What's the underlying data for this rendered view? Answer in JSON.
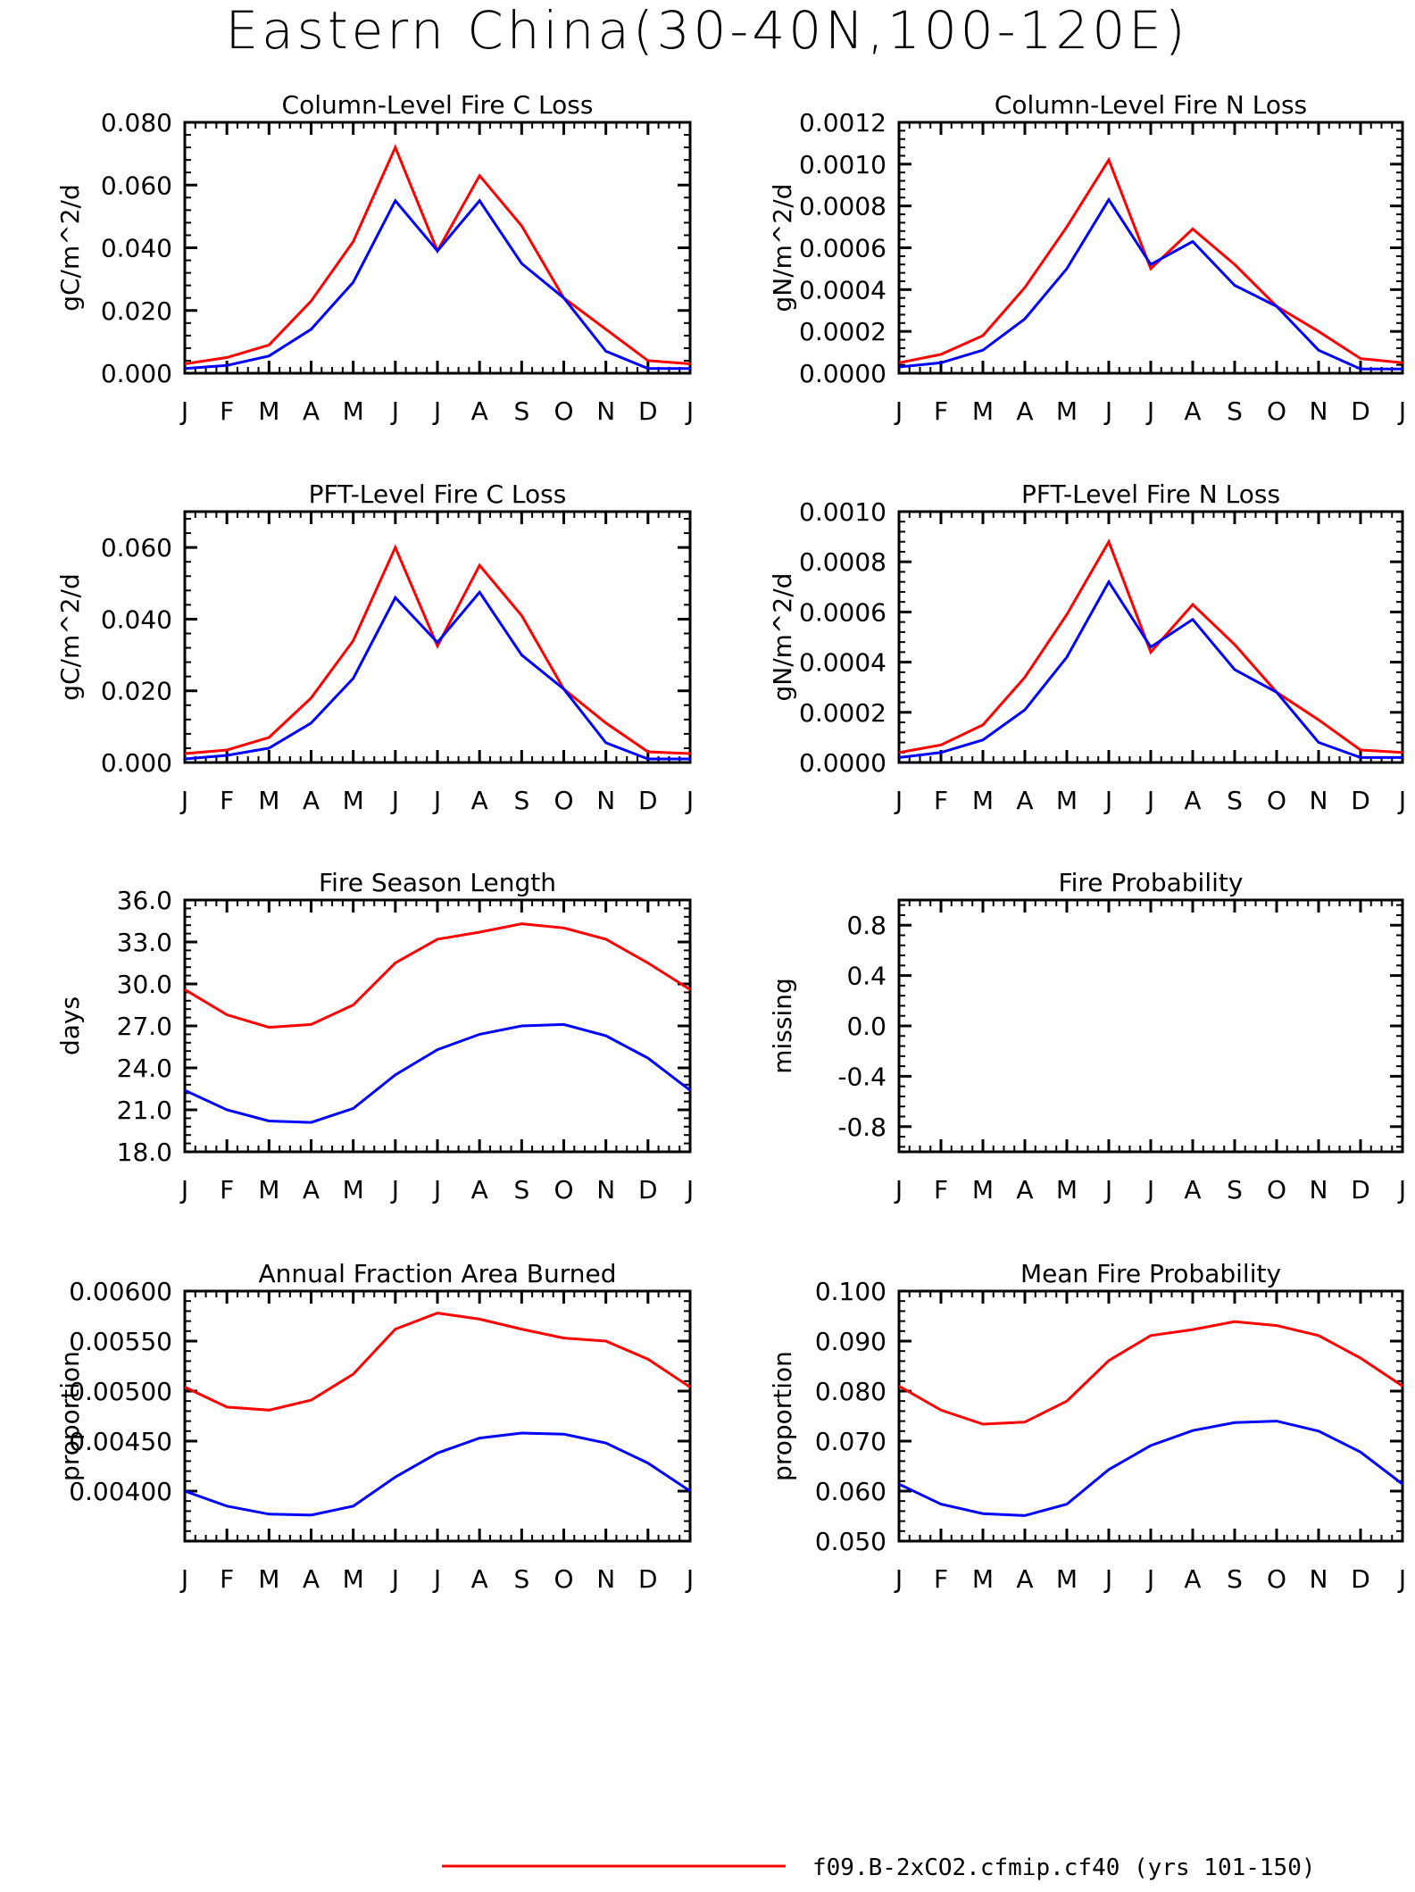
{
  "page": {
    "title": "Eastern China(30-40N,100-120E)",
    "legend": [
      {
        "label": "f09.B-2xCO2.cfmip.cf40 (yrs 101-150)",
        "color": "#ff0000"
      }
    ]
  },
  "colors": {
    "red_series": "#ff0000",
    "blue_series": "#0000ff"
  },
  "chart_data": [
    {
      "type": "line",
      "title": "Column-Level Fire C Loss",
      "ylabel": "gC/m^2/d",
      "categories": [
        "J",
        "F",
        "M",
        "A",
        "M",
        "J",
        "J",
        "A",
        "S",
        "O",
        "N",
        "D",
        "J"
      ],
      "ylim": [
        0,
        0.08
      ],
      "yticks": [
        "0.000",
        "0.020",
        "0.040",
        "0.060",
        "0.080"
      ],
      "series": [
        {
          "color": "#ff0000",
          "values": [
            0.003,
            0.005,
            0.009,
            0.023,
            0.042,
            0.072,
            0.039,
            0.063,
            0.047,
            0.024,
            0.014,
            0.004,
            0.003
          ]
        },
        {
          "color": "#0000ff",
          "values": [
            0.0015,
            0.0025,
            0.0055,
            0.014,
            0.029,
            0.055,
            0.039,
            0.055,
            0.035,
            0.024,
            0.007,
            0.0015,
            0.0015
          ]
        }
      ]
    },
    {
      "type": "line",
      "title": "Column-Level Fire N Loss",
      "ylabel": "gN/m^2/d",
      "categories": [
        "J",
        "F",
        "M",
        "A",
        "M",
        "J",
        "J",
        "A",
        "S",
        "O",
        "N",
        "D",
        "J"
      ],
      "ylim": [
        0,
        0.0012
      ],
      "yticks": [
        "0.0000",
        "0.0002",
        "0.0004",
        "0.0006",
        "0.0008",
        "0.0010",
        "0.0012"
      ],
      "series": [
        {
          "color": "#ff0000",
          "values": [
            5e-05,
            9e-05,
            0.00018,
            0.00041,
            0.0007,
            0.00102,
            0.0005,
            0.00069,
            0.00052,
            0.00032,
            0.0002,
            7e-05,
            5e-05
          ]
        },
        {
          "color": "#0000ff",
          "values": [
            3e-05,
            5e-05,
            0.00011,
            0.00026,
            0.0005,
            0.00083,
            0.00052,
            0.00063,
            0.00042,
            0.00032,
            0.00011,
            2e-05,
            2e-05
          ]
        }
      ]
    },
    {
      "type": "line",
      "title": "PFT-Level Fire C Loss",
      "ylabel": "gC/m^2/d",
      "categories": [
        "J",
        "F",
        "M",
        "A",
        "M",
        "J",
        "J",
        "A",
        "S",
        "O",
        "N",
        "D",
        "J"
      ],
      "ylim": [
        0,
        0.07
      ],
      "yticks": [
        "0.000",
        "0.020",
        "0.040",
        "0.060"
      ],
      "series": [
        {
          "color": "#ff0000",
          "values": [
            0.0025,
            0.0035,
            0.007,
            0.018,
            0.034,
            0.06,
            0.0325,
            0.055,
            0.041,
            0.0205,
            0.011,
            0.003,
            0.0025
          ]
        },
        {
          "color": "#0000ff",
          "values": [
            0.001,
            0.002,
            0.004,
            0.011,
            0.0235,
            0.046,
            0.0335,
            0.0475,
            0.03,
            0.0205,
            0.0055,
            0.001,
            0.001
          ]
        }
      ]
    },
    {
      "type": "line",
      "title": "PFT-Level Fire N Loss",
      "ylabel": "gN/m^2/d",
      "categories": [
        "J",
        "F",
        "M",
        "A",
        "M",
        "J",
        "J",
        "A",
        "S",
        "O",
        "N",
        "D",
        "J"
      ],
      "ylim": [
        0,
        0.001
      ],
      "yticks": [
        "0.0000",
        "0.0002",
        "0.0004",
        "0.0006",
        "0.0008",
        "0.0010"
      ],
      "series": [
        {
          "color": "#ff0000",
          "values": [
            4e-05,
            7e-05,
            0.00015,
            0.00034,
            0.00059,
            0.00088,
            0.00044,
            0.00063,
            0.00047,
            0.00028,
            0.00017,
            5e-05,
            4e-05
          ]
        },
        {
          "color": "#0000ff",
          "values": [
            2e-05,
            4e-05,
            9e-05,
            0.00021,
            0.00042,
            0.00072,
            0.00046,
            0.00057,
            0.00037,
            0.00028,
            8e-05,
            2e-05,
            2e-05
          ]
        }
      ]
    },
    {
      "type": "line",
      "title": "Fire Season Length",
      "ylabel": "days",
      "categories": [
        "J",
        "F",
        "M",
        "A",
        "M",
        "J",
        "J",
        "A",
        "S",
        "O",
        "N",
        "D",
        "J"
      ],
      "ylim": [
        18,
        36
      ],
      "yticks": [
        "18.0",
        "21.0",
        "24.0",
        "27.0",
        "30.0",
        "33.0",
        "36.0"
      ],
      "series": [
        {
          "color": "#ff0000",
          "values": [
            29.6,
            27.8,
            26.9,
            27.1,
            28.5,
            31.5,
            33.2,
            33.7,
            34.3,
            34.0,
            33.2,
            31.5,
            29.6
          ]
        },
        {
          "color": "#0000ff",
          "values": [
            22.4,
            21.0,
            20.2,
            20.1,
            21.1,
            23.5,
            25.3,
            26.4,
            27.0,
            27.1,
            26.3,
            24.7,
            22.4
          ]
        }
      ]
    },
    {
      "type": "line",
      "title": "Fire Probability",
      "ylabel": "missing",
      "categories": [
        "J",
        "F",
        "M",
        "A",
        "M",
        "J",
        "J",
        "A",
        "S",
        "O",
        "N",
        "D",
        "J"
      ],
      "ylim": [
        -1,
        1
      ],
      "yticks": [
        "-0.8",
        "-0.4",
        "0.0",
        "0.4",
        "0.8"
      ],
      "series": []
    },
    {
      "type": "line",
      "title": "Annual Fraction Area Burned",
      "ylabel": "proportion",
      "categories": [
        "J",
        "F",
        "M",
        "A",
        "M",
        "J",
        "J",
        "A",
        "S",
        "O",
        "N",
        "D",
        "J"
      ],
      "ylim": [
        0.0035,
        0.006
      ],
      "yticks": [
        "0.00400",
        "0.00450",
        "0.00500",
        "0.00550",
        "0.00600"
      ],
      "series": [
        {
          "color": "#ff0000",
          "values": [
            0.00504,
            0.00484,
            0.00481,
            0.00491,
            0.00517,
            0.00562,
            0.00578,
            0.00572,
            0.00562,
            0.00553,
            0.0055,
            0.00532,
            0.00504
          ]
        },
        {
          "color": "#0000ff",
          "values": [
            0.004,
            0.00385,
            0.00377,
            0.00376,
            0.00385,
            0.00414,
            0.00438,
            0.00453,
            0.00458,
            0.00457,
            0.00448,
            0.00428,
            0.004
          ]
        }
      ]
    },
    {
      "type": "line",
      "title": "Mean Fire Probability",
      "ylabel": "proportion",
      "categories": [
        "J",
        "F",
        "M",
        "A",
        "M",
        "J",
        "J",
        "A",
        "S",
        "O",
        "N",
        "D",
        "J"
      ],
      "ylim": [
        0.05,
        0.1
      ],
      "yticks": [
        "0.050",
        "0.060",
        "0.070",
        "0.080",
        "0.090",
        "0.100"
      ],
      "series": [
        {
          "color": "#ff0000",
          "values": [
            0.081,
            0.0762,
            0.0734,
            0.0738,
            0.078,
            0.0861,
            0.0911,
            0.0923,
            0.0939,
            0.0931,
            0.0911,
            0.0866,
            0.081
          ]
        },
        {
          "color": "#0000ff",
          "values": [
            0.0614,
            0.0574,
            0.0555,
            0.0551,
            0.0574,
            0.0643,
            0.0691,
            0.0721,
            0.0737,
            0.074,
            0.072,
            0.0678,
            0.0614
          ]
        }
      ]
    }
  ]
}
